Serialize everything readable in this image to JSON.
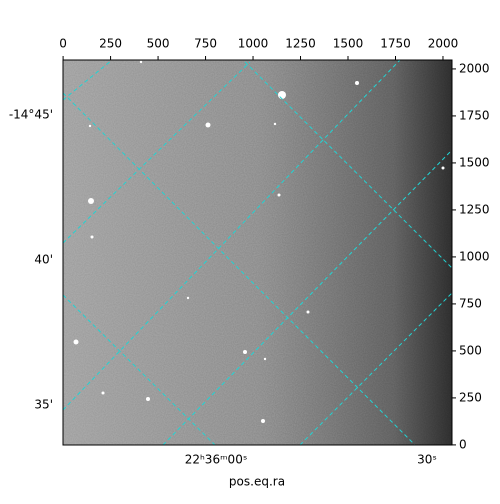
{
  "chart_data": {
    "type": "image",
    "xlabel": "pos.eq.ra",
    "xlim": [
      -0.5,
      2047.5
    ],
    "ylim": [
      -0.5,
      2047.5
    ],
    "xticks": [
      0,
      250,
      500,
      750,
      1000,
      1250,
      1500,
      1750,
      2000
    ],
    "yticks": [
      0,
      250,
      500,
      750,
      1000,
      1250,
      1500,
      1750,
      2000
    ],
    "dec_ticks": [
      "-14°45'",
      "40'",
      "35'"
    ],
    "ra_ticks": [
      "22ʰ36ᵐ00ˢ",
      "30ˢ"
    ],
    "grid": true,
    "grid_color": "#22d3d3"
  }
}
